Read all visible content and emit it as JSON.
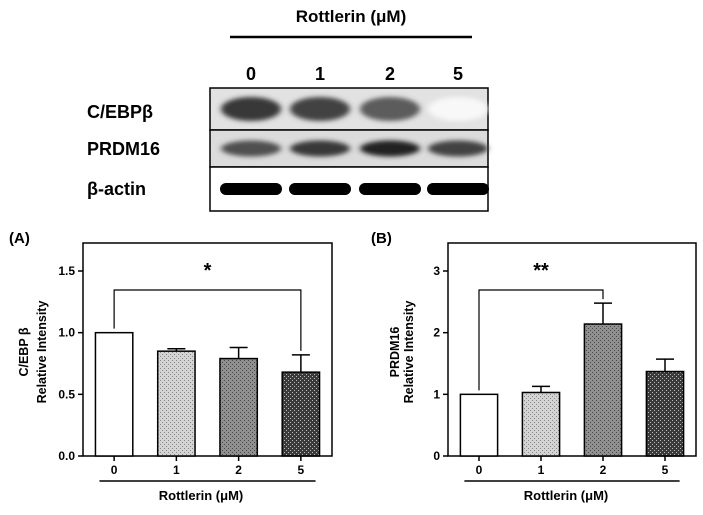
{
  "blot": {
    "treatment_label": "Rottlerin (μM)",
    "lanes": [
      "0",
      "1",
      "2",
      "5"
    ],
    "rows": [
      {
        "label": "C/EBPβ",
        "band_intensity": [
          0.85,
          0.8,
          0.7,
          0.03
        ]
      },
      {
        "label": "PRDM16",
        "band_intensity": [
          0.75,
          0.85,
          0.95,
          0.8
        ]
      },
      {
        "label": "β-actin",
        "band_intensity": [
          1.0,
          1.0,
          1.0,
          1.0
        ]
      }
    ]
  },
  "chart_data": [
    {
      "panel": "(A)",
      "type": "bar",
      "categories": [
        "0",
        "1",
        "2",
        "5"
      ],
      "values": [
        1.0,
        0.85,
        0.79,
        0.68
      ],
      "errors": [
        0.0,
        0.02,
        0.09,
        0.14
      ],
      "xlabel": "Rottlerin (μM)",
      "ylabel_line1": "C/EBP β",
      "ylabel_line2": "Relative Intensity",
      "ylim": [
        0,
        1.5
      ],
      "yticks": [
        "0.0",
        "0.5",
        "1.0",
        "1.5"
      ],
      "significance": {
        "from": "0",
        "to": "5",
        "label": "*"
      }
    },
    {
      "panel": "(B)",
      "type": "bar",
      "categories": [
        "0",
        "1",
        "2",
        "5"
      ],
      "values": [
        1.0,
        1.03,
        2.14,
        1.37
      ],
      "errors": [
        0.0,
        0.1,
        0.34,
        0.2
      ],
      "xlabel": "Rottlerin (μM)",
      "ylabel_line1": "PRDM16",
      "ylabel_line2": "Relative Intensity",
      "ylim": [
        0,
        3
      ],
      "yticks": [
        "0",
        "1",
        "2",
        "3"
      ],
      "significance": {
        "from": "0",
        "to": "2",
        "label": "**"
      }
    }
  ]
}
